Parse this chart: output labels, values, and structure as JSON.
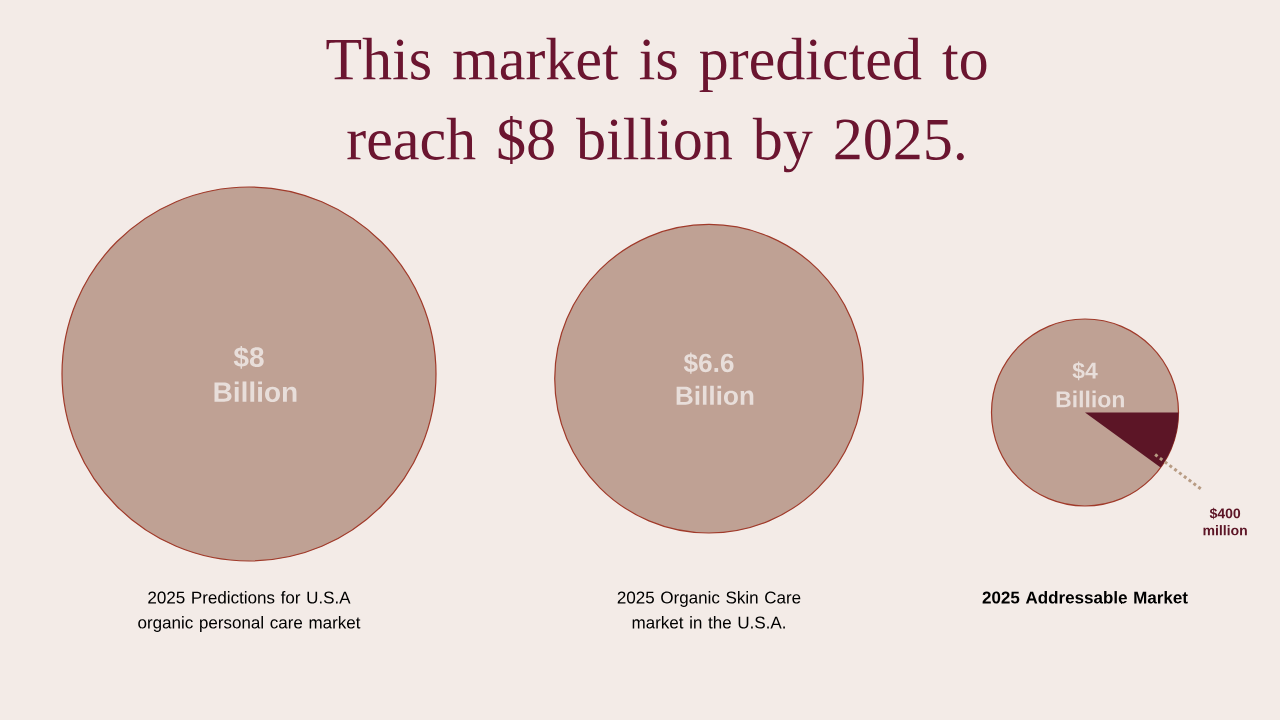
{
  "chart_data": {
    "type": "other",
    "title": "This market is predicted to reach $8 billion by 2025.",
    "categories": [
      "2025 Predictions for U.S.A organic personal care market",
      "2025 Organic Skin Care market in the U.S.A.",
      "2025 Addressable Market",
      null
    ],
    "values": [
      8,
      6.6,
      4,
      400
    ],
    "value_labels": [
      "$8 Billion",
      "$6.6 Billion",
      "$4 Billion",
      "$400 million"
    ],
    "colors": [
      "#bfa194",
      "#bfa194",
      "#bfa194",
      "#5c1526"
    ]
  }
}
